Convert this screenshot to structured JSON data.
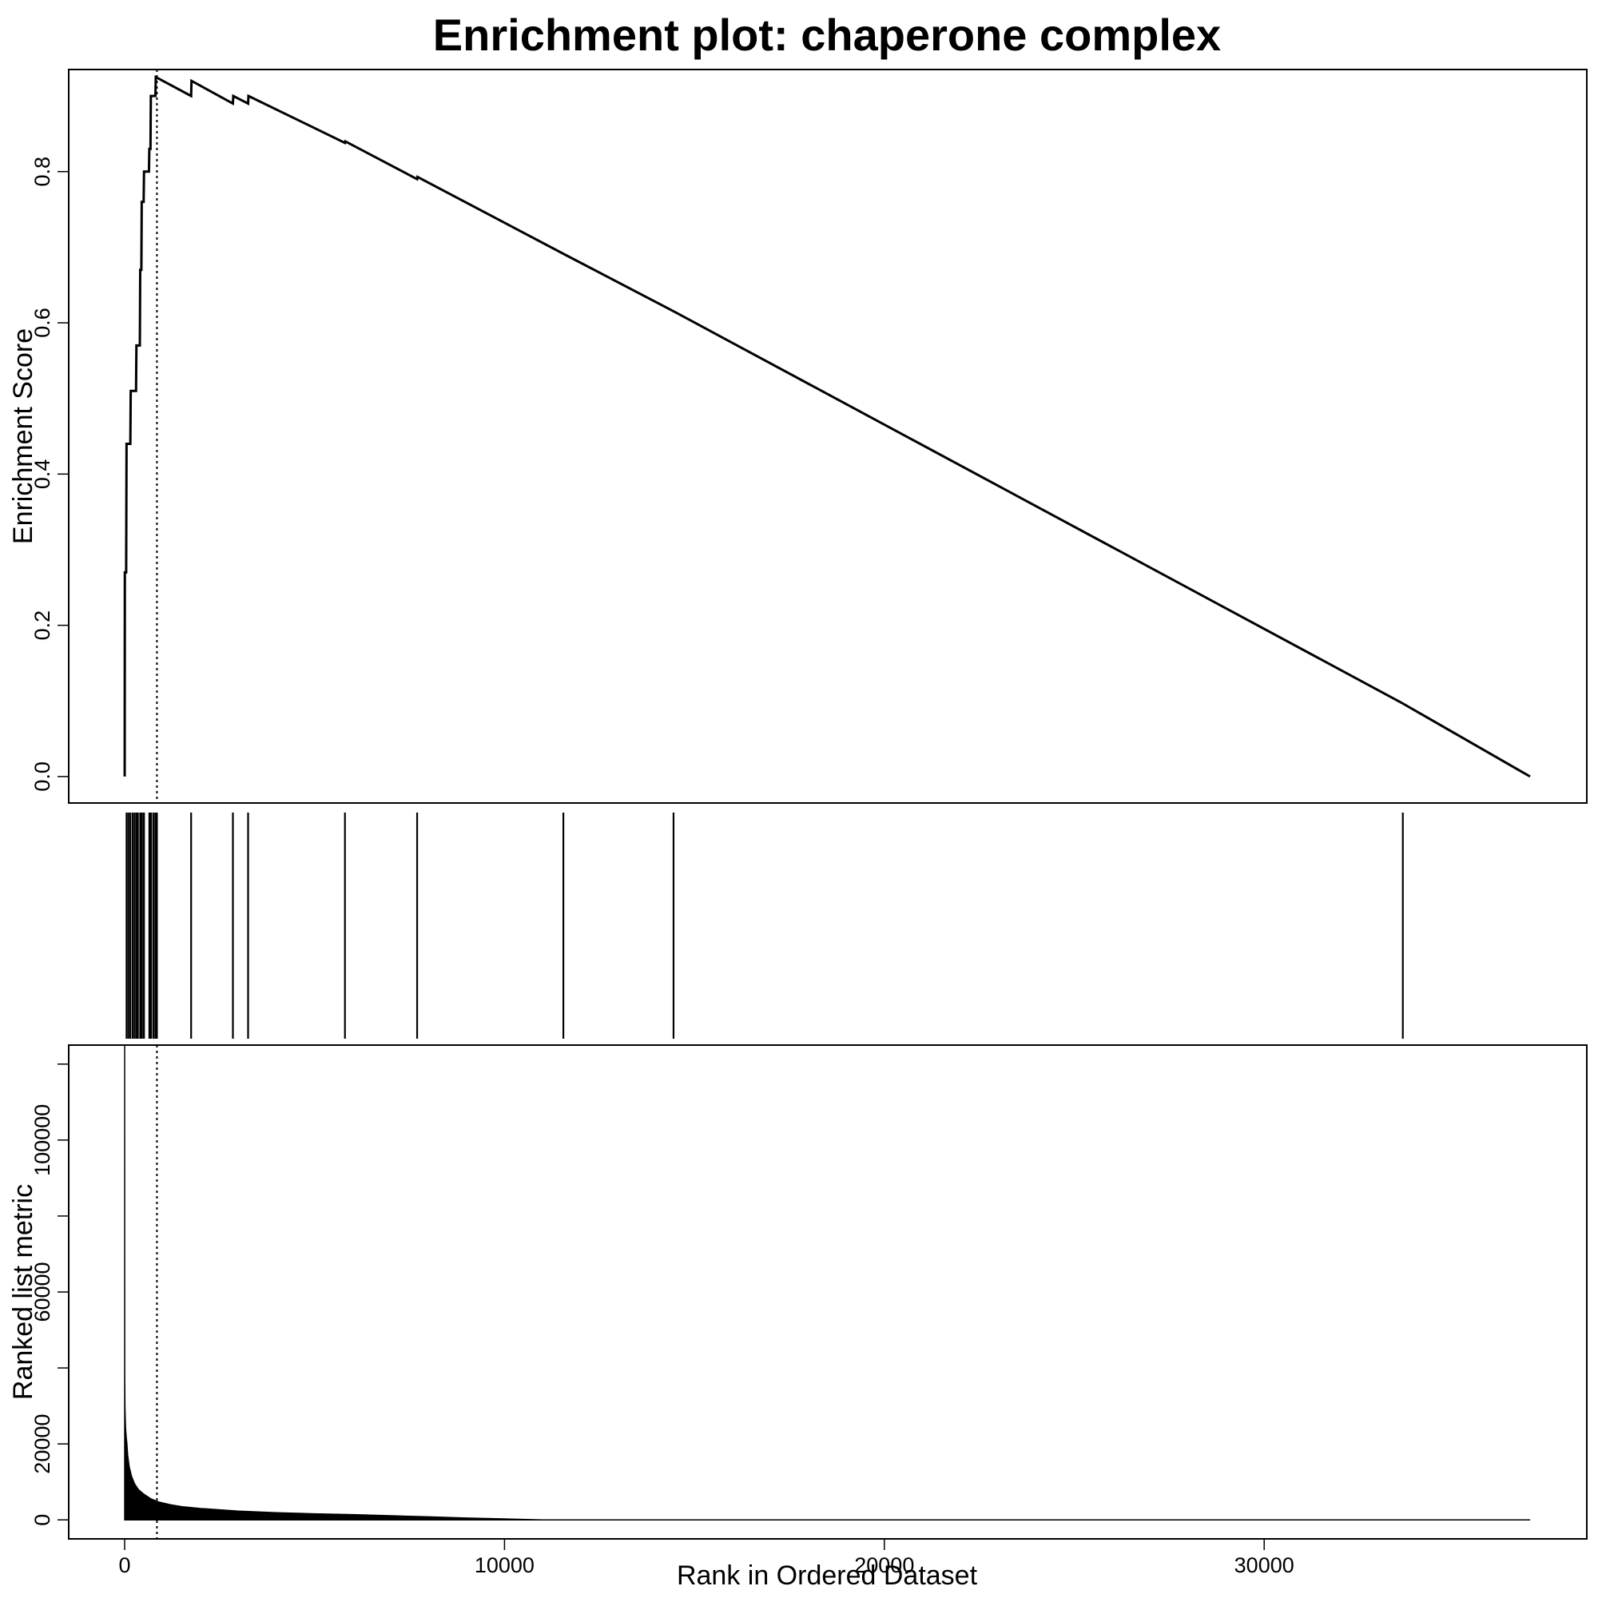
{
  "chart_data": {
    "type": "line",
    "title": "Enrichment plot: chaperone complex",
    "xlabel": "Rank in Ordered Dataset",
    "xlim": [
      0,
      37000
    ],
    "x_ticks": [
      {
        "value": 0,
        "label": "0"
      },
      {
        "value": 10000,
        "label": "10000"
      },
      {
        "value": 20000,
        "label": "20000"
      },
      {
        "value": 30000,
        "label": "30000"
      }
    ],
    "leading_edge_rank": 850,
    "grid": false,
    "panels": [
      {
        "name": "enrichment-score",
        "ylabel": "Enrichment Score",
        "ylim": [
          -0.035,
          0.935
        ],
        "y_ticks": [
          {
            "value": 0.0,
            "label": "0.0"
          },
          {
            "value": 0.2,
            "label": "0.2"
          },
          {
            "value": 0.4,
            "label": "0.4"
          },
          {
            "value": 0.6,
            "label": "0.6"
          },
          {
            "value": 0.8,
            "label": "0.8"
          }
        ],
        "series": [
          {
            "points": [
              [
                1,
                0.0
              ],
              [
                5,
                0.27
              ],
              [
                40,
                0.27
              ],
              [
                50,
                0.44
              ],
              [
                150,
                0.44
              ],
              [
                160,
                0.51
              ],
              [
                300,
                0.51
              ],
              [
                310,
                0.57
              ],
              [
                400,
                0.57
              ],
              [
                410,
                0.67
              ],
              [
                440,
                0.67
              ],
              [
                450,
                0.76
              ],
              [
                500,
                0.76
              ],
              [
                510,
                0.8
              ],
              [
                640,
                0.8
              ],
              [
                650,
                0.83
              ],
              [
                680,
                0.83
              ],
              [
                690,
                0.9
              ],
              [
                810,
                0.9
              ],
              [
                820,
                0.925
              ],
              [
                1750,
                0.9
              ],
              [
                1760,
                0.92
              ],
              [
                2850,
                0.89
              ],
              [
                2860,
                0.9
              ],
              [
                3250,
                0.89
              ],
              [
                3260,
                0.9
              ],
              [
                5800,
                0.838
              ],
              [
                5810,
                0.84
              ],
              [
                7700,
                0.79
              ],
              [
                7710,
                0.793
              ],
              [
                11600,
                0.69
              ],
              [
                14500,
                0.614
              ],
              [
                33600,
                0.098
              ],
              [
                37000,
                0.0
              ]
            ]
          }
        ]
      },
      {
        "name": "gene-hits",
        "hits": [
          50,
          100,
          150,
          210,
          260,
          310,
          350,
          410,
          450,
          500,
          510,
          650,
          690,
          700,
          760,
          810,
          850,
          1750,
          2850,
          3250,
          5800,
          7700,
          11550,
          14450,
          33650
        ]
      },
      {
        "name": "ranked-list-metric",
        "ylabel": "Ranked list metric",
        "ylim": [
          -5000,
          125000
        ],
        "y_ticks": [
          {
            "value": 0,
            "label": "0"
          },
          {
            "value": 20000,
            "label": "20000"
          },
          {
            "value": 60000,
            "label": "60000"
          },
          {
            "value": 100000,
            "label": "100000"
          }
        ],
        "y_minor_ticks": [
          40000,
          80000,
          120000
        ],
        "profile": [
          [
            1,
            125000
          ],
          [
            3,
            38000
          ],
          [
            8,
            30000
          ],
          [
            15,
            27000
          ],
          [
            25,
            24000
          ],
          [
            40,
            22000
          ],
          [
            60,
            20000
          ],
          [
            80,
            17000
          ],
          [
            120,
            14000
          ],
          [
            180,
            11500
          ],
          [
            260,
            9500
          ],
          [
            360,
            8000
          ],
          [
            500,
            6800
          ],
          [
            700,
            5500
          ],
          [
            900,
            4700
          ],
          [
            1200,
            4000
          ],
          [
            1500,
            3500
          ],
          [
            2000,
            3000
          ],
          [
            3000,
            2300
          ],
          [
            4000,
            1900
          ],
          [
            5000,
            1600
          ],
          [
            6000,
            1400
          ],
          [
            7000,
            1100
          ],
          [
            8000,
            800
          ],
          [
            9000,
            500
          ],
          [
            10000,
            250
          ],
          [
            10800,
            60
          ],
          [
            11000,
            0
          ],
          [
            37000,
            0
          ]
        ]
      }
    ]
  }
}
